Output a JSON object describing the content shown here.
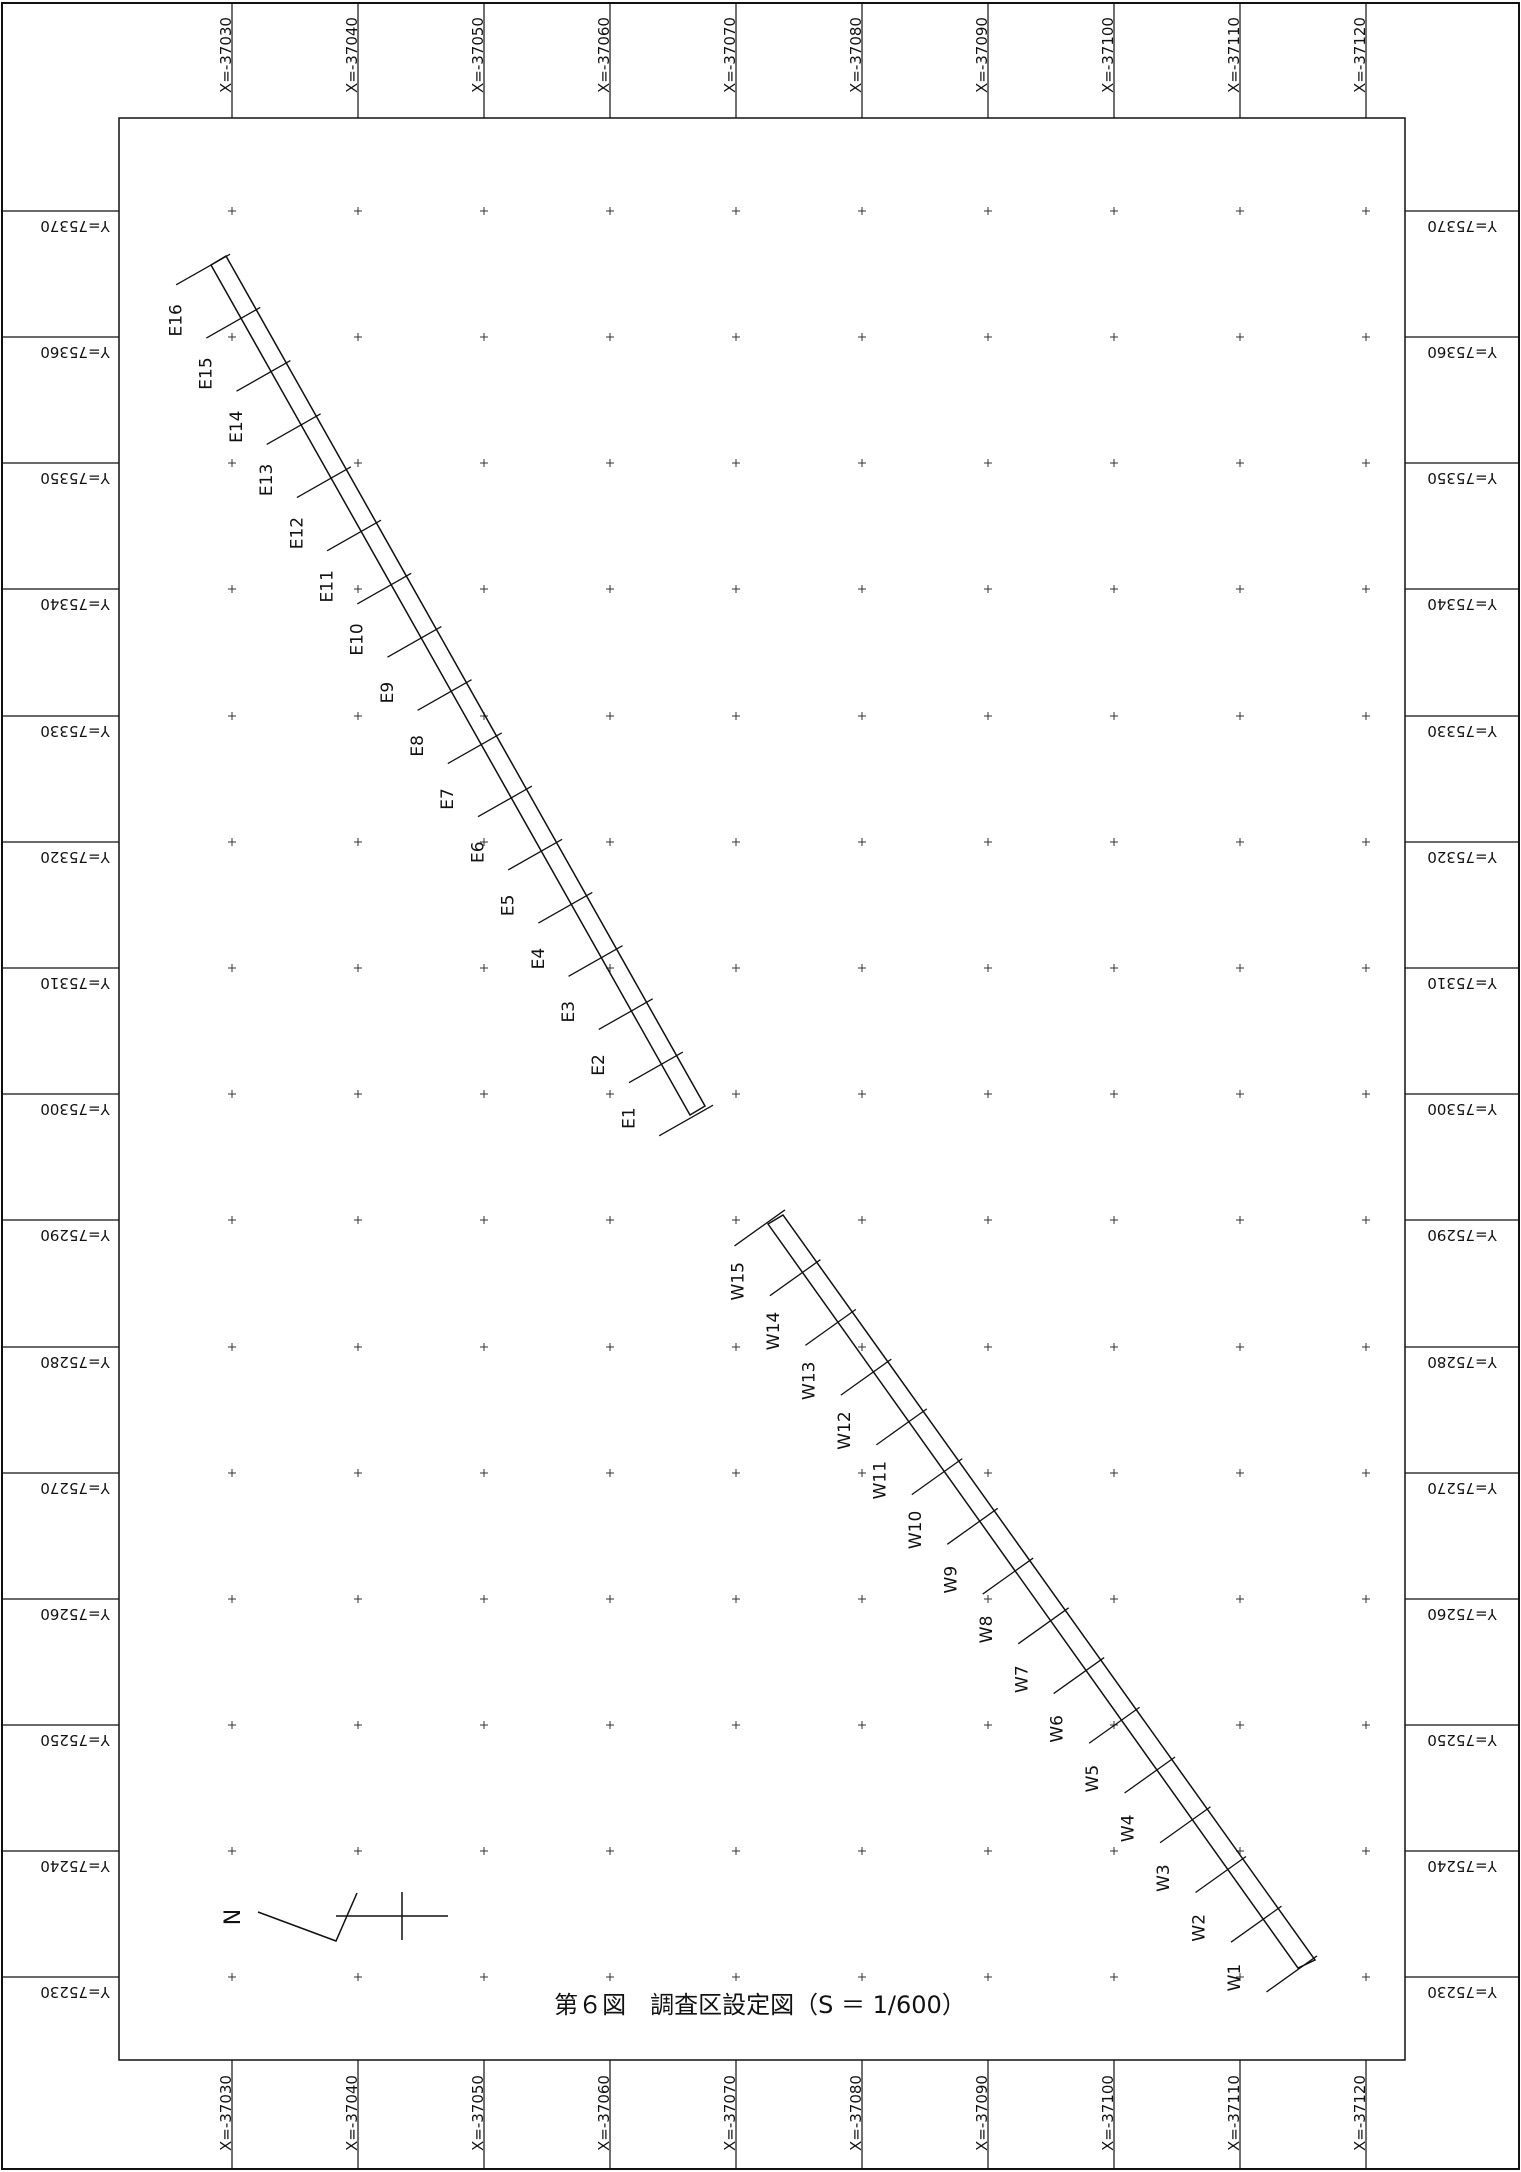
{
  "x_grid_labels": [
    "X=-37030",
    "X=-37040",
    "X=-37050",
    "X=-37060",
    "X=-37070",
    "X=-37080",
    "X=-37090",
    "X=-37100",
    "X=-37110",
    "X=-37120"
  ],
  "y_grid_labels": [
    "Y=75370",
    "Y=75360",
    "Y=75350",
    "Y=75340",
    "Y=75330",
    "Y=75320",
    "Y=75310",
    "Y=75300",
    "Y=75290",
    "Y=75280",
    "Y=75270",
    "Y=75260",
    "Y=75250",
    "Y=75240",
    "Y=75230"
  ],
  "east_trench": {
    "labels": [
      "E16",
      "E15",
      "E14",
      "E13",
      "E12",
      "E11",
      "E10",
      "E9",
      "E8",
      "E7",
      "E6",
      "E5",
      "E4",
      "E3",
      "E2",
      "E1"
    ]
  },
  "west_trench": {
    "labels": [
      "W15",
      "W14",
      "W13",
      "W12",
      "W11",
      "W10",
      "W9",
      "W8",
      "W7",
      "W6",
      "W5",
      "W4",
      "W3",
      "W2",
      "W1"
    ]
  },
  "north_arrow": {
    "label": "N"
  },
  "caption": "第６図　調査区設定図（S ＝ 1/600）"
}
